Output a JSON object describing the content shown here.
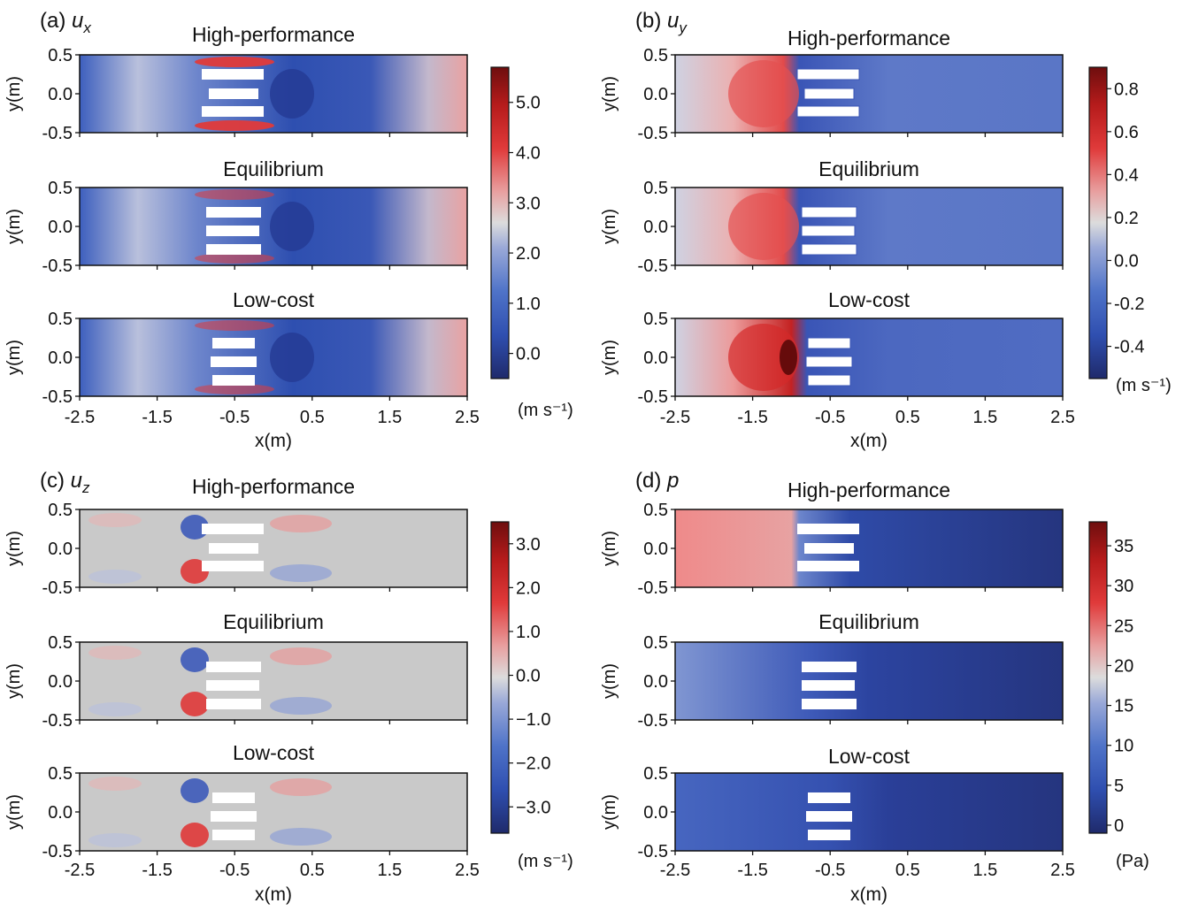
{
  "chart_data": {
    "type": "heatmap",
    "row_titles": [
      "High-performance",
      "Equilibrium",
      "Low-cost"
    ],
    "x_ticks": [
      "-2.5",
      "-1.5",
      "-0.5",
      "0.5",
      "1.5",
      "2.5"
    ],
    "x_ticks_c": [
      "-2.5",
      "-1.5",
      "-0.5",
      "0.5",
      "1.5",
      "2.5"
    ],
    "y_ticks": [
      "0.5",
      "0.0",
      "-0.5"
    ],
    "xlabel": "x(m)",
    "ylabel": "y(m)",
    "panels": [
      {
        "label": "(a)",
        "var": "u",
        "sub": "x",
        "colorbar": {
          "ticks": [
            "5.0",
            "4.0",
            "3.0",
            "2.0",
            "1.0",
            "0.0"
          ],
          "min": -0.5,
          "max": 5.7,
          "unit": "(m s⁻¹)"
        }
      },
      {
        "label": "(b)",
        "var": "u",
        "sub": "y",
        "colorbar": {
          "ticks": [
            "0.8",
            "0.6",
            "0.4",
            "0.2",
            "0.0",
            "-0.2",
            "-0.4"
          ],
          "min": -0.55,
          "max": 0.9,
          "unit": "(m s⁻¹)"
        }
      },
      {
        "label": "(c)",
        "var": "u",
        "sub": "z",
        "colorbar": {
          "ticks": [
            "3.0",
            "2.0",
            "1.0",
            "0.0",
            "−1.0",
            "−2.0",
            "−3.0"
          ],
          "min": -3.6,
          "max": 3.5,
          "unit": "(m s⁻¹)"
        }
      },
      {
        "label": "(d)",
        "var": "p",
        "sub": "",
        "colorbar": {
          "ticks": [
            "35",
            "30",
            "25",
            "20",
            "15",
            "10",
            "5",
            "0"
          ],
          "min": -1,
          "max": 38,
          "unit": "(Pa)"
        }
      }
    ],
    "colormap": [
      "#1f2a6b",
      "#2f4fb0",
      "#4f73c8",
      "#9aa9d8",
      "#dcdcdc",
      "#e8a0a0",
      "#e03a3a",
      "#b51b1b",
      "#6e0e0e"
    ]
  }
}
